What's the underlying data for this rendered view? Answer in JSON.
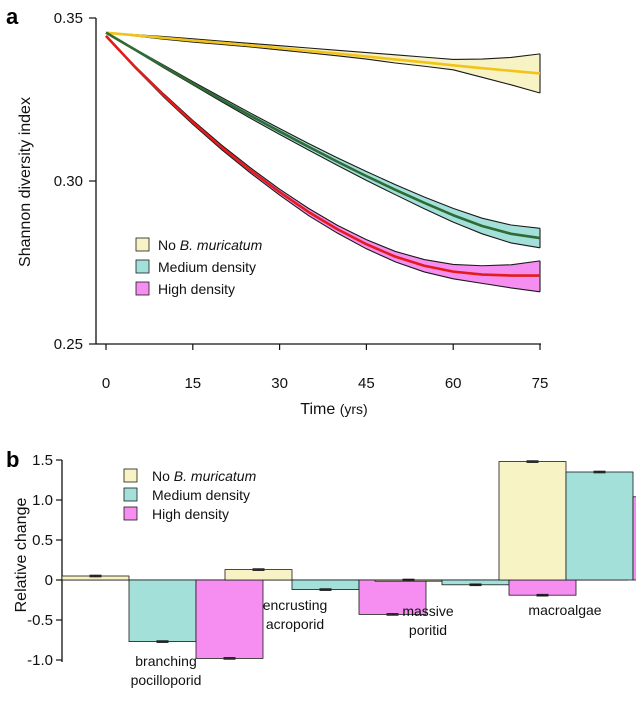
{
  "panel_a_label": "a",
  "panel_b_label": "b",
  "colors": {
    "yellow_fill": "#f8f3c4",
    "yellow_line": "#f2c41a",
    "teal_fill": "#a3e0da",
    "teal_line": "#2f6b34",
    "pink_fill": "#f58ef0",
    "pink_line": "#e31b1b",
    "outline": "#1a1a1a"
  },
  "chart_data": [
    {
      "type": "line",
      "ylabel": "Shannon diversity index",
      "xlabel": "Time",
      "xlabel_unit": "(yrs)",
      "xlim": [
        0,
        75
      ],
      "ylim": [
        0.25,
        0.35
      ],
      "xticks": [
        0,
        15,
        30,
        45,
        60,
        75
      ],
      "xtick_labels": [
        "0",
        "15",
        "30",
        "45",
        "60",
        "75"
      ],
      "yticks": [
        0.25,
        0.3,
        0.35
      ],
      "ytick_labels": [
        "0.25",
        "0.30",
        "0.35"
      ],
      "legend_position": "lower-left",
      "x": [
        0,
        5,
        10,
        15,
        20,
        25,
        30,
        35,
        40,
        45,
        50,
        55,
        60,
        65,
        70,
        75
      ],
      "series": [
        {
          "name_prefix": "No ",
          "name_italic": "B. muricatum",
          "color": "yellow",
          "mean": [
            0.3455,
            0.3447,
            0.3439,
            0.3431,
            0.3424,
            0.3416,
            0.3408,
            0.3399,
            0.3391,
            0.3382,
            0.3373,
            0.3364,
            0.3355,
            0.3346,
            0.3338,
            0.333
          ],
          "upper": [
            0.3455,
            0.3449,
            0.3443,
            0.3436,
            0.3429,
            0.3422,
            0.3415,
            0.3408,
            0.3401,
            0.3394,
            0.3387,
            0.338,
            0.3373,
            0.3374,
            0.3379,
            0.339
          ],
          "lower": [
            0.3455,
            0.3445,
            0.3435,
            0.3426,
            0.3419,
            0.3411,
            0.3402,
            0.3393,
            0.3384,
            0.3374,
            0.3362,
            0.3352,
            0.3341,
            0.3318,
            0.3295,
            0.327
          ]
        },
        {
          "name": "Medium density",
          "color": "teal",
          "mean": [
            0.3455,
            0.3403,
            0.3351,
            0.33,
            0.3249,
            0.32,
            0.3152,
            0.3105,
            0.3059,
            0.3015,
            0.2973,
            0.2933,
            0.2895,
            0.2862,
            0.2838,
            0.2825
          ],
          "upper": [
            0.3455,
            0.3405,
            0.3355,
            0.3305,
            0.3256,
            0.3208,
            0.3161,
            0.3115,
            0.3071,
            0.3029,
            0.2989,
            0.2951,
            0.2916,
            0.2886,
            0.2865,
            0.2855
          ],
          "lower": [
            0.3455,
            0.3401,
            0.3347,
            0.3295,
            0.3243,
            0.3192,
            0.3143,
            0.3095,
            0.3048,
            0.3002,
            0.2958,
            0.2915,
            0.2874,
            0.2838,
            0.281,
            0.2795
          ]
        },
        {
          "name": "High density",
          "color": "pink",
          "mean": [
            0.3445,
            0.335,
            0.3262,
            0.318,
            0.3103,
            0.3032,
            0.2966,
            0.2905,
            0.2852,
            0.2806,
            0.2768,
            0.274,
            0.2722,
            0.2713,
            0.271,
            0.271
          ],
          "upper": [
            0.3445,
            0.3353,
            0.3267,
            0.3186,
            0.311,
            0.304,
            0.2975,
            0.2916,
            0.2864,
            0.282,
            0.2784,
            0.2759,
            0.2744,
            0.274,
            0.2743,
            0.2755
          ],
          "lower": [
            0.3445,
            0.3347,
            0.3257,
            0.3174,
            0.3096,
            0.3024,
            0.2957,
            0.2894,
            0.284,
            0.2792,
            0.2752,
            0.2721,
            0.27,
            0.2686,
            0.2672,
            0.266
          ]
        }
      ]
    },
    {
      "type": "bar",
      "ylabel": "Relative change",
      "ylim": [
        -1.0,
        1.5
      ],
      "yticks": [
        -1.0,
        -0.5,
        0,
        0.5,
        1.0,
        1.5
      ],
      "ytick_labels": [
        "-1.0",
        "-0.5",
        "0",
        "0.5",
        "1.0",
        "1.5"
      ],
      "legend_position": "top-left",
      "categories": [
        {
          "lines": [
            "branching",
            "pocilloporid"
          ]
        },
        {
          "lines": [
            "encrusting",
            "acroporid"
          ]
        },
        {
          "lines": [
            "massive",
            "poritid"
          ]
        },
        {
          "lines": [
            "macroalgae"
          ]
        }
      ],
      "series": [
        {
          "name_prefix": "No ",
          "name_italic": "B. muricatum",
          "color": "yellow",
          "values": [
            0.05,
            0.13,
            0.0,
            1.48
          ],
          "errors": [
            0.01,
            0.01,
            0.01,
            0.01
          ]
        },
        {
          "name": "Medium density",
          "color": "teal",
          "values": [
            -0.77,
            -0.12,
            -0.06,
            1.35
          ],
          "errors": [
            0.01,
            0.01,
            0.01,
            0.01
          ]
        },
        {
          "name": "High density",
          "color": "pink",
          "values": [
            -0.98,
            -0.43,
            -0.19,
            1.04
          ],
          "errors": [
            0.01,
            0.01,
            0.01,
            0.01
          ]
        }
      ]
    }
  ]
}
